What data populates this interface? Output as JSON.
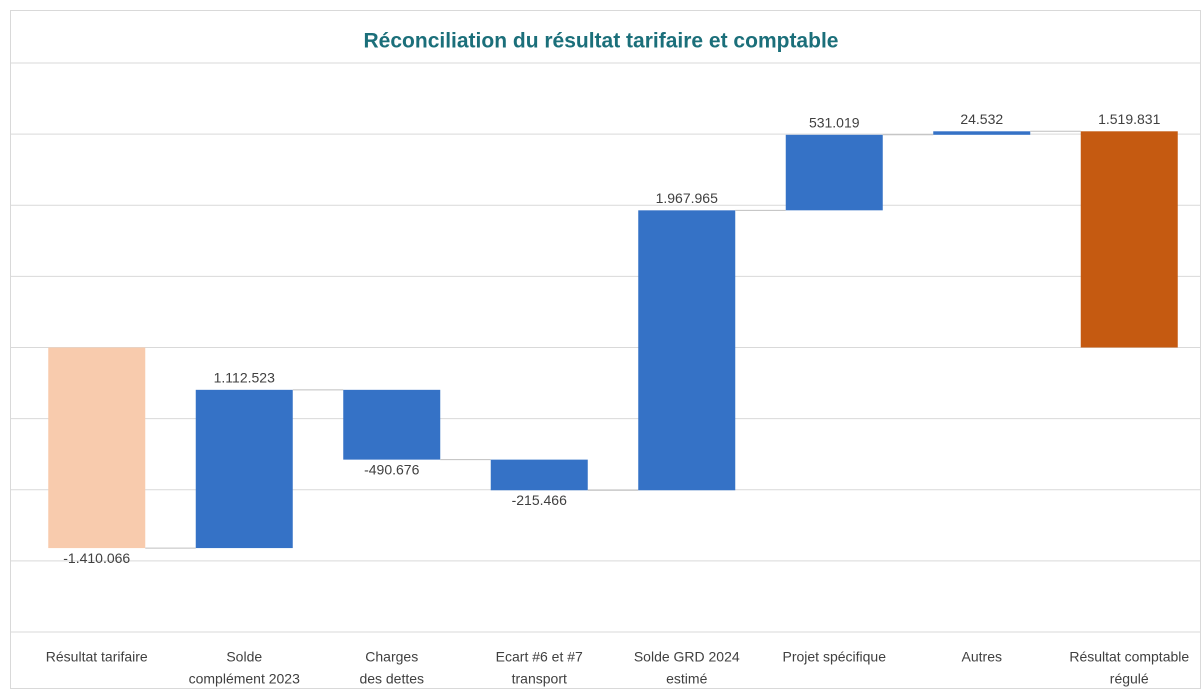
{
  "chart_data": {
    "type": "waterfall",
    "title": "Réconciliation du résultat tarifaire et comptable",
    "categories": [
      [
        "Résultat tarifaire"
      ],
      [
        "Solde",
        "complément 2023"
      ],
      [
        "Charges",
        "des dettes"
      ],
      [
        "Ecart #6 et #7",
        "transport"
      ],
      [
        "Solde GRD 2024",
        "estimé"
      ],
      [
        "Projet spécifique"
      ],
      [
        "Autres"
      ],
      [
        "Résultat comptable",
        "régulé"
      ]
    ],
    "values": [
      -1410066,
      1112523,
      -490676,
      -215466,
      1967965,
      531019,
      24532,
      1519831
    ],
    "value_labels": [
      "-1.410.066",
      "1.112.523",
      "-490.676",
      "-215.466",
      "1.967.965",
      "531.019",
      "24.532",
      "1.519.831"
    ],
    "is_total": [
      true,
      false,
      false,
      false,
      false,
      false,
      false,
      true
    ],
    "colors": [
      "#f8cbad",
      "#3572c6",
      "#3572c6",
      "#3572c6",
      "#3572c6",
      "#3572c6",
      "#3572c6",
      "#c55a11"
    ],
    "ylim": [
      -2000000,
      2000000
    ],
    "yticks": [
      -2000000,
      -1500000,
      -1000000,
      -500000,
      0,
      500000,
      1000000,
      1500000,
      2000000
    ],
    "grid": true
  }
}
